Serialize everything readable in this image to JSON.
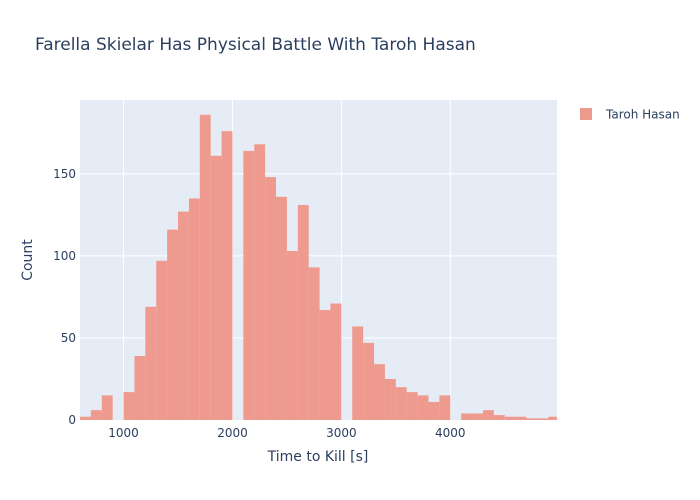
{
  "chart_data": {
    "type": "bar",
    "title": "Farella Skielar Has Physical Battle With Taroh Hasan",
    "xlabel": "Time to Kill [s]",
    "ylabel": "Count",
    "xlim": [
      600,
      4980
    ],
    "ylim": [
      0,
      195
    ],
    "bin_width": 100,
    "x_ticks": [
      1000,
      2000,
      3000,
      4000
    ],
    "y_ticks": [
      0,
      50,
      100,
      150
    ],
    "grid": true,
    "legend_position": "top-right",
    "colors": {
      "bar": "#EF9A8E",
      "plot_bg": "#E5ECF6",
      "grid": "#FFFFFF",
      "text": "#2A3F5F"
    },
    "series": [
      {
        "name": "Taroh Hasan",
        "bin_starts": [
          600,
          700,
          800,
          900,
          1000,
          1100,
          1200,
          1300,
          1400,
          1500,
          1600,
          1700,
          1800,
          1900,
          2000,
          2100,
          2200,
          2300,
          2400,
          2500,
          2600,
          2700,
          2800,
          2900,
          3000,
          3100,
          3200,
          3300,
          3400,
          3500,
          3600,
          3700,
          3800,
          3900,
          4000,
          4100,
          4200,
          4300,
          4400,
          4500,
          4600,
          4700,
          4800,
          4900
        ],
        "values": [
          2,
          6,
          15,
          0,
          17,
          39,
          69,
          97,
          116,
          127,
          135,
          186,
          161,
          176,
          0,
          164,
          168,
          148,
          136,
          103,
          131,
          93,
          67,
          71,
          0,
          57,
          47,
          34,
          25,
          20,
          17,
          15,
          11,
          15,
          0,
          4,
          4,
          6,
          3,
          2,
          2,
          1,
          1,
          2
        ]
      }
    ]
  }
}
